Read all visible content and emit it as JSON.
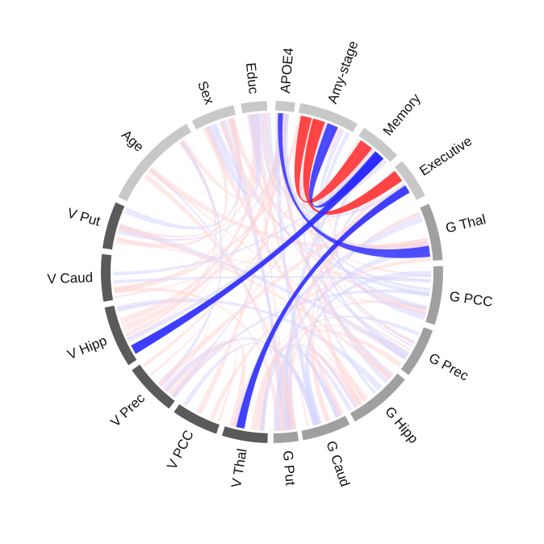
{
  "diagram": {
    "type": "chord",
    "colors": {
      "positive": "#ff2a2a",
      "negative": "#2a2aff",
      "background_positive": "#ffd6d6",
      "background_negative": "#d6d6ff",
      "demographics_track": "#c8c8c8",
      "cognition_track": "#c8c8c8",
      "gray_matter_track": "#a0a0a0",
      "volume_track": "#5a5a5a"
    },
    "sectors": [
      {
        "id": "educ",
        "label": "Educ",
        "group": "demographics"
      },
      {
        "id": "apoe4",
        "label": "APOE4",
        "group": "demographics"
      },
      {
        "id": "amy",
        "label": "Amy-stage",
        "group": "demographics"
      },
      {
        "id": "memory",
        "label": "Memory",
        "group": "cognition"
      },
      {
        "id": "executive",
        "label": "Executive",
        "group": "cognition"
      },
      {
        "id": "g_thal",
        "label": "G Thal",
        "group": "gray_matter"
      },
      {
        "id": "g_pcc",
        "label": "G PCC",
        "group": "gray_matter"
      },
      {
        "id": "g_prec",
        "label": "G Prec",
        "group": "gray_matter"
      },
      {
        "id": "g_hipp",
        "label": "G Hipp",
        "group": "gray_matter"
      },
      {
        "id": "g_caud",
        "label": "G Caud",
        "group": "gray_matter"
      },
      {
        "id": "g_put",
        "label": "G Put",
        "group": "gray_matter"
      },
      {
        "id": "v_thal",
        "label": "V Thal",
        "group": "volume"
      },
      {
        "id": "v_pcc",
        "label": "V PCC",
        "group": "volume"
      },
      {
        "id": "v_prec",
        "label": "V Prec",
        "group": "volume"
      },
      {
        "id": "v_hipp",
        "label": "V Hipp",
        "group": "volume"
      },
      {
        "id": "v_caud",
        "label": "V Caud",
        "group": "volume"
      },
      {
        "id": "v_put",
        "label": "V Put",
        "group": "volume"
      },
      {
        "id": "age",
        "label": "Age",
        "group": "demographics"
      },
      {
        "id": "sex",
        "label": "Sex",
        "group": "demographics"
      }
    ],
    "highlighted_links": [
      {
        "from": "apoe4",
        "to": "g_thal",
        "sign": "negative",
        "strength": 0.35
      },
      {
        "from": "amy",
        "to": "memory",
        "sign": "positive",
        "strength": 0.55
      },
      {
        "from": "amy",
        "to": "executive",
        "sign": "positive",
        "strength": 0.6
      },
      {
        "from": "amy",
        "to": "memory",
        "sign": "negative",
        "strength": 0.45
      },
      {
        "from": "memory",
        "to": "v_hipp",
        "sign": "negative",
        "strength": 0.8
      },
      {
        "from": "executive",
        "to": "v_thal",
        "sign": "negative",
        "strength": 0.7
      }
    ]
  }
}
